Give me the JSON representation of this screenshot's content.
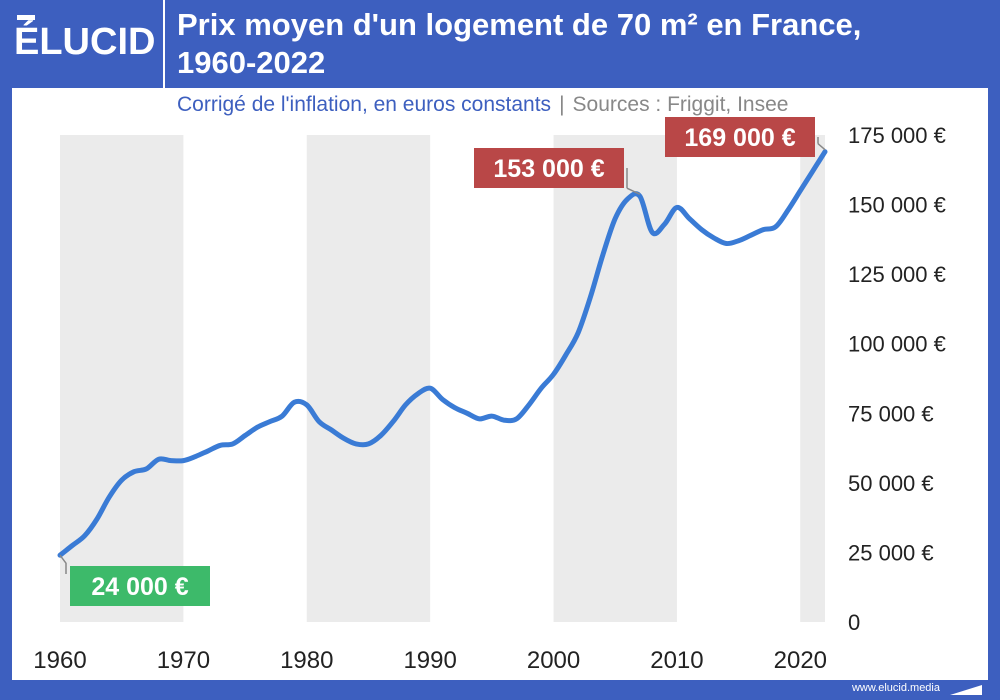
{
  "brand": {
    "logo": "ÉLUCID",
    "footer_url": "www.elucid.media"
  },
  "header": {
    "title_line1": "Prix moyen d'un logement de 70 m² en France,",
    "title_line2": "1960-2022"
  },
  "subtitle": {
    "main": "Corrigé de l'inflation, en euros constants",
    "separator": "|",
    "sources": "Sources : Friggit, Insee"
  },
  "colors": {
    "frame": "#3d5fbf",
    "line": "#3a7bd5",
    "band": "#ebebeb",
    "label_low": "#3dba6a",
    "label_high": "#b94747"
  },
  "chart_data": {
    "type": "line",
    "title": "Prix moyen d'un logement de 70 m² en France, 1960-2022",
    "subtitle": "Corrigé de l'inflation, en euros constants",
    "xlabel": "",
    "ylabel": "",
    "xlim": [
      1960,
      2022
    ],
    "ylim": [
      0,
      175000
    ],
    "x_ticks": [
      1960,
      1970,
      1980,
      1990,
      2000,
      2010,
      2020
    ],
    "x_tick_labels": [
      "1960",
      "1970",
      "1980",
      "1990",
      "2000",
      "2010",
      "2020"
    ],
    "y_ticks": [
      0,
      25000,
      50000,
      75000,
      100000,
      125000,
      150000,
      175000
    ],
    "y_tick_labels": [
      "0",
      "25 000 €",
      "50 000 €",
      "75 000 €",
      "100 000 €",
      "125 000 €",
      "150 000 €",
      "175 000 €"
    ],
    "y_axis_side": "right",
    "grid": false,
    "background_bands": "alternating decades",
    "x": [
      1960,
      1961,
      1962,
      1963,
      1964,
      1965,
      1966,
      1967,
      1968,
      1969,
      1970,
      1971,
      1972,
      1973,
      1974,
      1975,
      1976,
      1977,
      1978,
      1979,
      1980,
      1981,
      1982,
      1983,
      1984,
      1985,
      1986,
      1987,
      1988,
      1989,
      1990,
      1991,
      1992,
      1993,
      1994,
      1995,
      1996,
      1997,
      1998,
      1999,
      2000,
      2001,
      2002,
      2003,
      2004,
      2005,
      2006,
      2007,
      2008,
      2009,
      2010,
      2011,
      2012,
      2013,
      2014,
      2015,
      2016,
      2017,
      2018,
      2019,
      2020,
      2021,
      2022
    ],
    "y": [
      24000,
      27500,
      31000,
      37000,
      45000,
      51000,
      54000,
      55000,
      58500,
      58000,
      58000,
      59500,
      61500,
      63500,
      64000,
      67000,
      70000,
      72000,
      74000,
      79000,
      78000,
      72000,
      69000,
      66000,
      64000,
      64000,
      67000,
      72000,
      78000,
      82000,
      84000,
      80000,
      77000,
      75000,
      73000,
      74000,
      72500,
      73000,
      78000,
      84000,
      89000,
      96000,
      104000,
      117000,
      132000,
      145000,
      152000,
      153000,
      140000,
      143000,
      149000,
      145000,
      141000,
      138000,
      136000,
      137000,
      139000,
      141000,
      142000,
      148000,
      155000,
      162000,
      169000
    ],
    "annotations": [
      {
        "x": 1960,
        "y": 24000,
        "label": "24 000 €",
        "kind": "low"
      },
      {
        "x": 2007,
        "y": 153000,
        "label": "153 000 €",
        "kind": "high"
      },
      {
        "x": 2022,
        "y": 169000,
        "label": "169 000 €",
        "kind": "high"
      }
    ]
  }
}
